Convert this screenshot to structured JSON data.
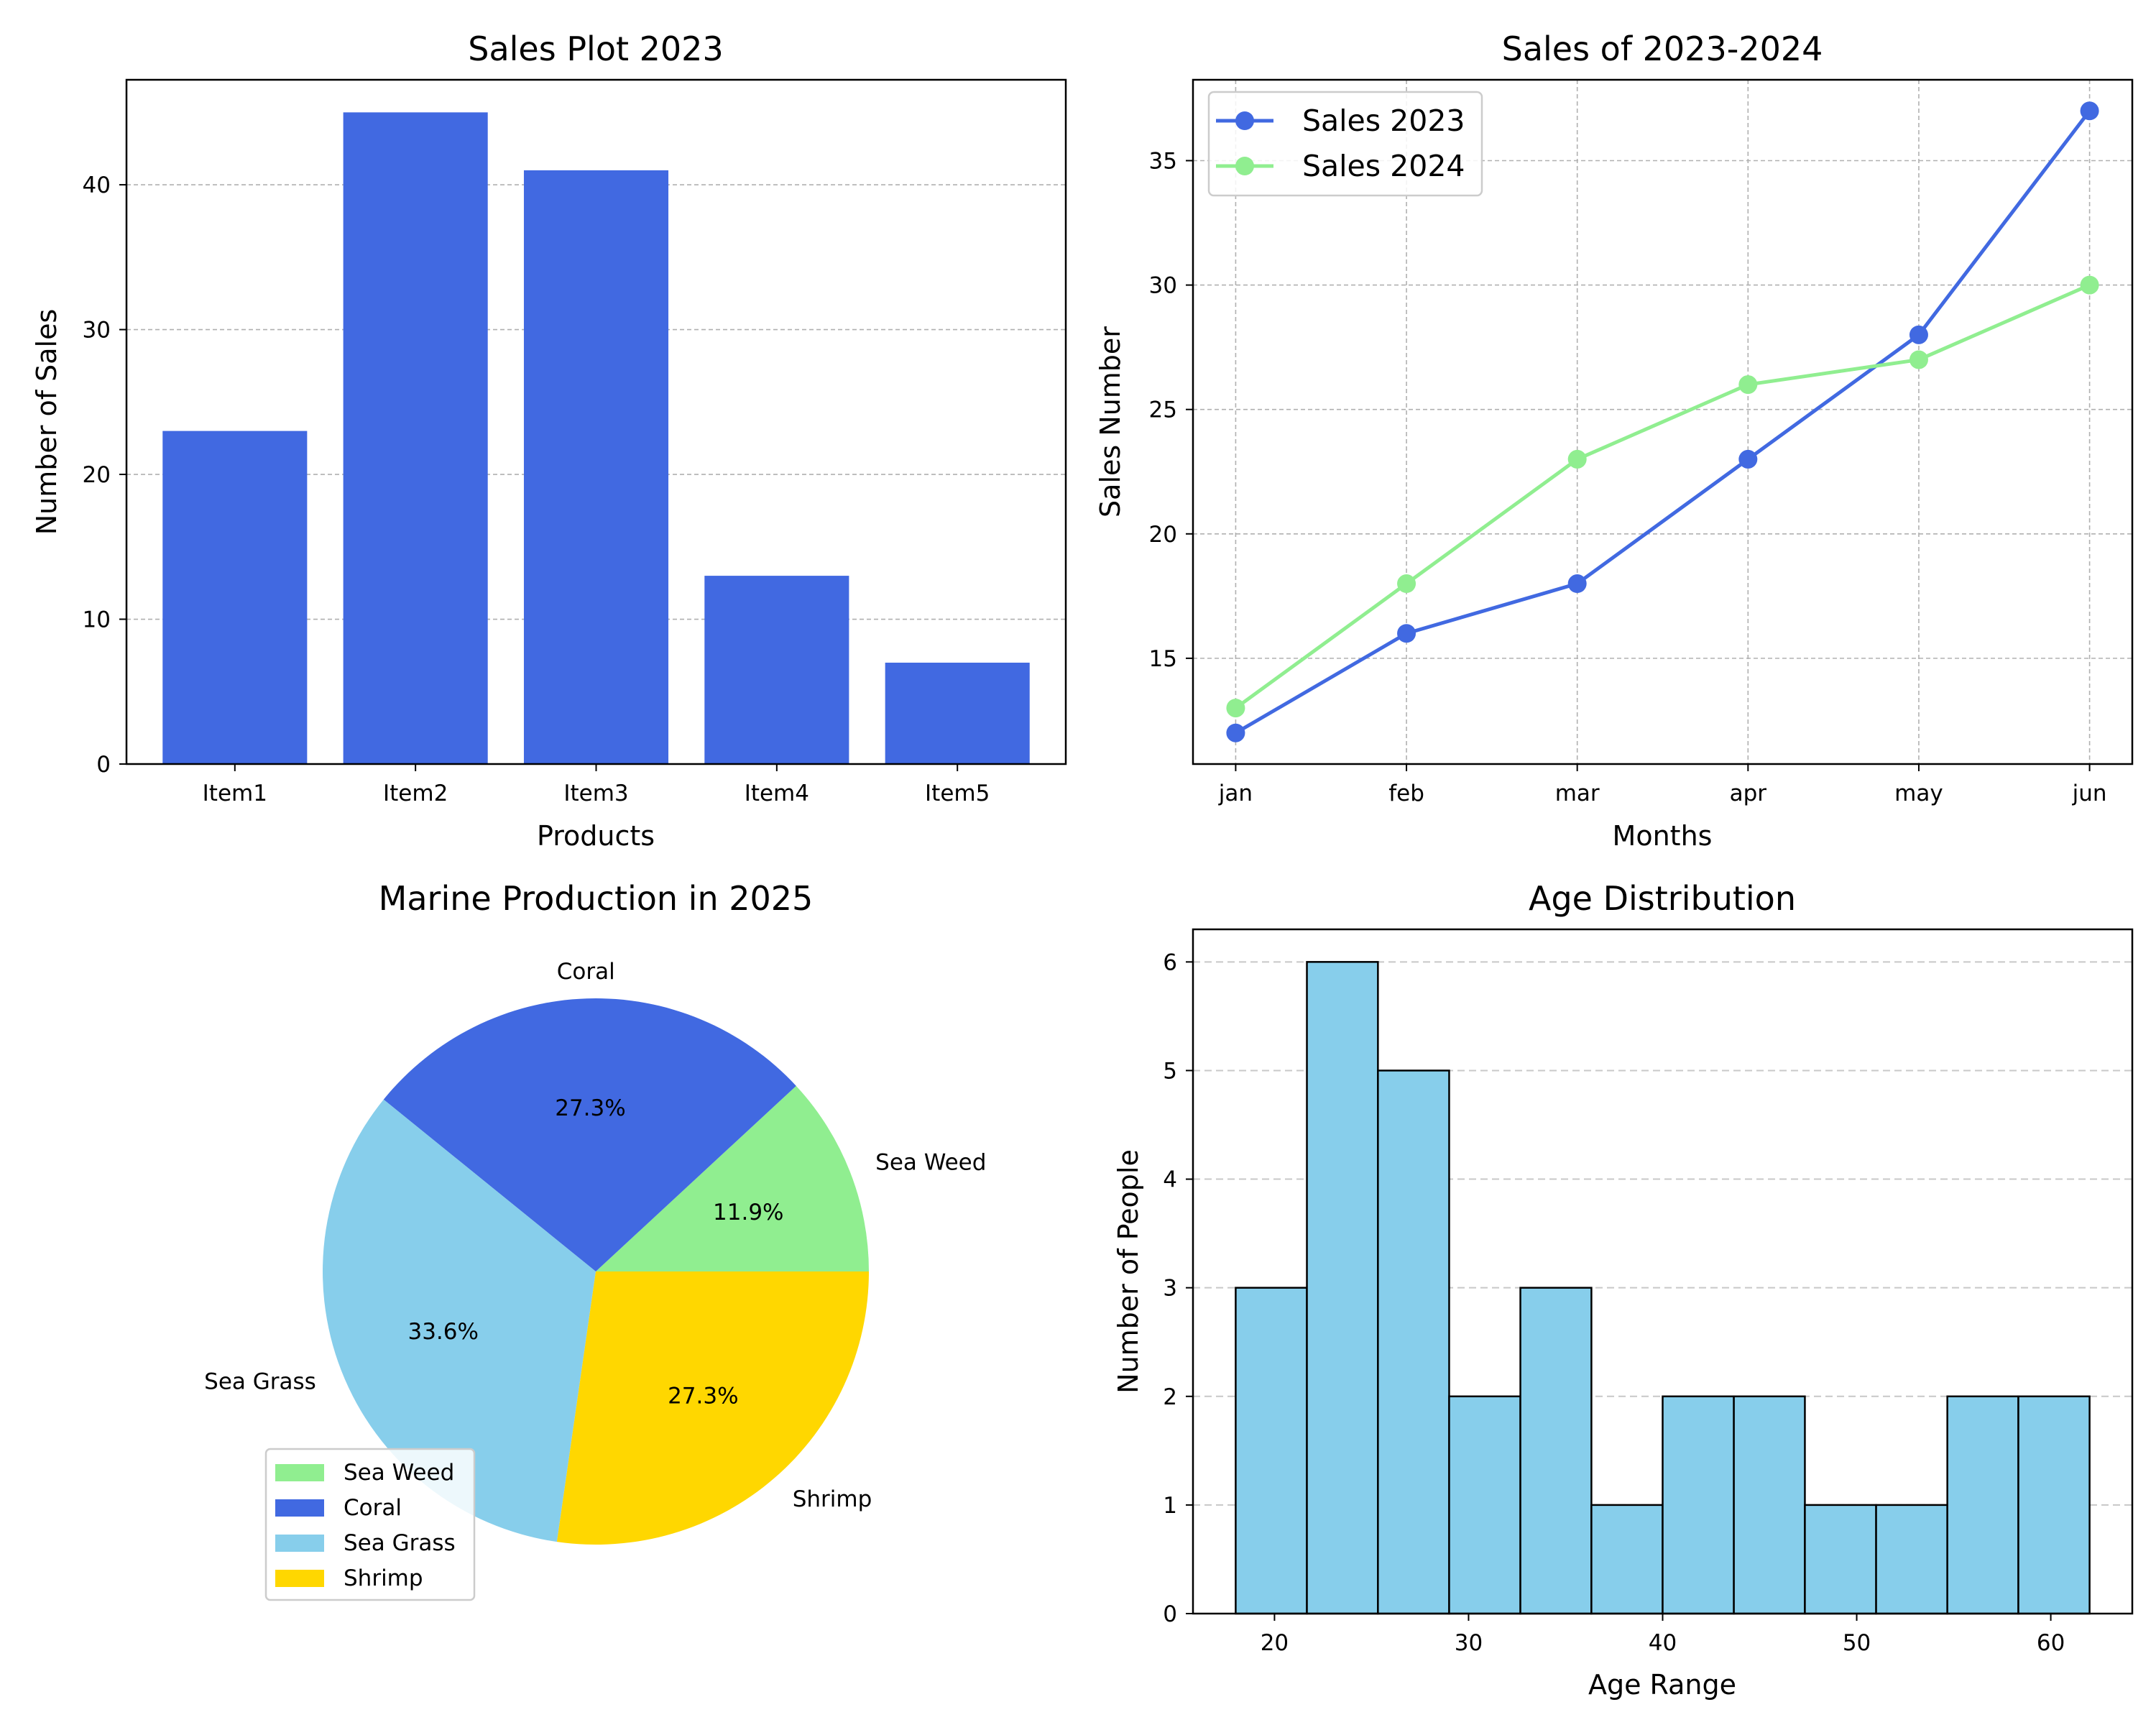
{
  "colors": {
    "royalblue": "#4169E1",
    "lightgreen": "#90EE90",
    "skyblue": "#87CEEB",
    "gold": "#FFD700",
    "grid": "#b0b0b0",
    "edge": "#000000"
  },
  "chart_data": [
    {
      "type": "bar",
      "title": "Sales Plot 2023",
      "xlabel": "Products",
      "ylabel": "Number of Sales",
      "categories": [
        "Item1",
        "Item2",
        "Item3",
        "Item4",
        "Item5"
      ],
      "values": [
        23,
        45,
        41,
        13,
        7
      ],
      "ylim": [
        0,
        47.25
      ],
      "yticks": [
        0,
        10,
        20,
        30,
        40
      ],
      "grid": "y-dashed",
      "color": "#4169E1"
    },
    {
      "type": "line",
      "title": "Sales of 2023-2024",
      "xlabel": "Months",
      "ylabel": "Sales Number",
      "categories": [
        "jan",
        "feb",
        "mar",
        "apr",
        "may",
        "jun"
      ],
      "series": [
        {
          "name": "Sales 2023",
          "values": [
            12,
            16,
            18,
            23,
            28,
            37
          ],
          "color": "#4169E1"
        },
        {
          "name": "Sales 2024",
          "values": [
            13,
            18,
            23,
            26,
            27,
            30
          ],
          "color": "#90EE90"
        }
      ],
      "ylim": [
        10.75,
        38.25
      ],
      "yticks": [
        15,
        20,
        25,
        30,
        35
      ],
      "grid": "both-dashed",
      "legend": "top-left"
    },
    {
      "type": "pie",
      "title": "Marine Production in 2025",
      "categories": [
        "Sea Weed",
        "Coral",
        "Sea Grass",
        "Shrimp"
      ],
      "values": [
        11.9,
        27.3,
        33.6,
        27.3
      ],
      "labels": [
        "11.9%",
        "27.3%",
        "33.6%",
        "27.3%"
      ],
      "colors": [
        "#90EE90",
        "#4169E1",
        "#87CEEB",
        "#FFD700"
      ],
      "legend": "lower-left"
    },
    {
      "type": "bar",
      "title": "Age Distribution",
      "xlabel": "Age Range",
      "ylabel": "Number of People",
      "histogram": true,
      "bin_edges": [
        18,
        21.67,
        25.33,
        29,
        32.67,
        36.33,
        40,
        43.67,
        47.33,
        51,
        54.67,
        58.33,
        62
      ],
      "values": [
        3,
        6,
        5,
        2,
        3,
        1,
        2,
        2,
        1,
        1,
        2,
        2
      ],
      "xlim": [
        15.8,
        64.2
      ],
      "ylim": [
        0,
        6.3
      ],
      "xticks": [
        20,
        30,
        40,
        50,
        60
      ],
      "yticks": [
        0,
        1,
        2,
        3,
        4,
        5,
        6
      ],
      "grid": "y-dashed",
      "color": "#87CEEB"
    }
  ]
}
